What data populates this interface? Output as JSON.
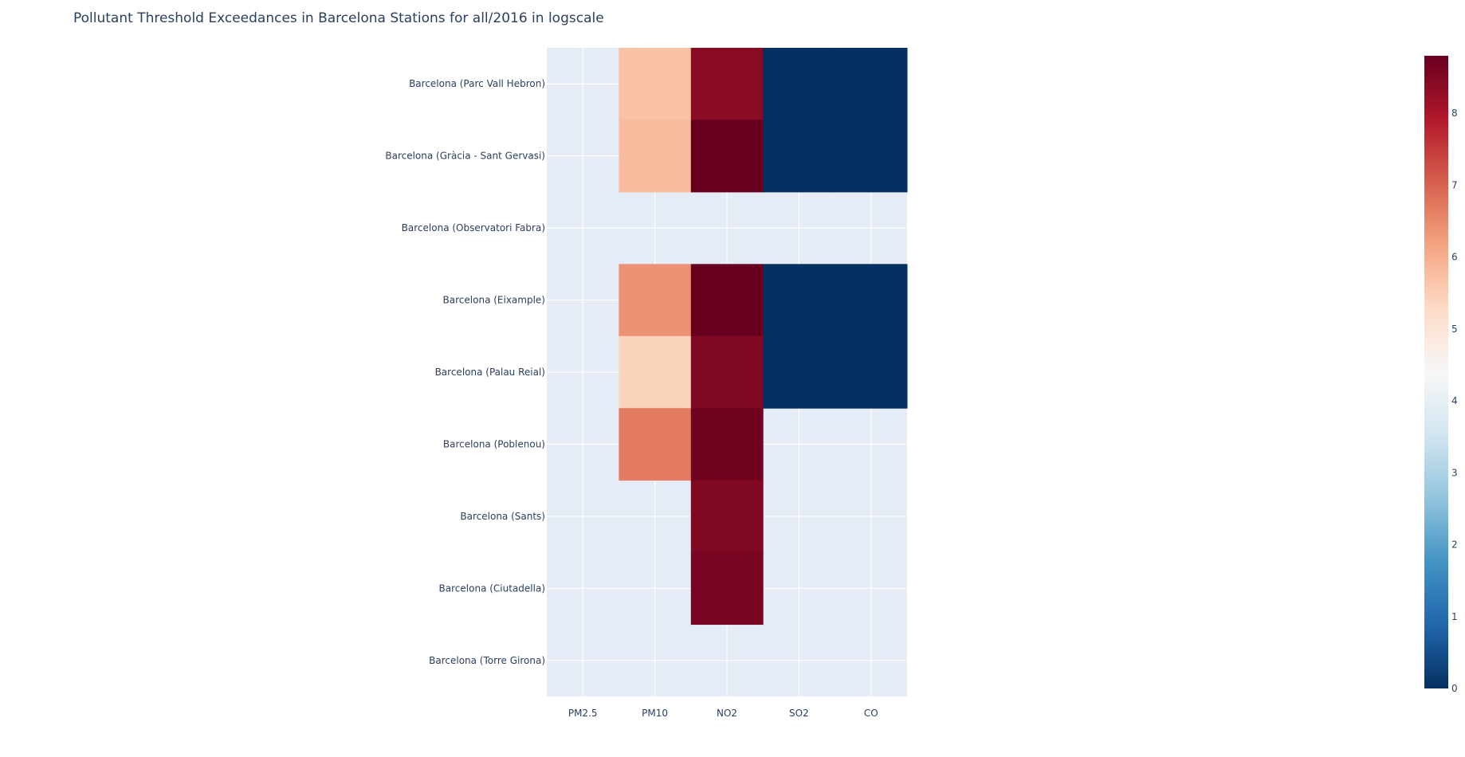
{
  "chart_data": {
    "type": "heatmap",
    "title": "Pollutant Threshold Exceedances in Barcelona Stations for all/2016 in logscale",
    "xlabel": "",
    "ylabel": "",
    "x_categories": [
      "PM2.5",
      "PM10",
      "NO2",
      "SO2",
      "CO"
    ],
    "y_categories": [
      "Barcelona (Parc Vall Hebron)",
      "Barcelona (Gràcia - Sant Gervasi)",
      "Barcelona (Observatori Fabra)",
      "Barcelona (Eixample)",
      "Barcelona (Palau Reial)",
      "Barcelona (Poblenou)",
      "Barcelona (Sants)",
      "Barcelona (Ciutadella)",
      "Barcelona (Torre Girona)"
    ],
    "z": [
      [
        null,
        5.7,
        8.4,
        0,
        0
      ],
      [
        null,
        5.8,
        8.9,
        0,
        0
      ],
      [
        null,
        null,
        null,
        null,
        null
      ],
      [
        null,
        6.4,
        8.9,
        0,
        0
      ],
      [
        null,
        5.4,
        8.5,
        0,
        0
      ],
      [
        null,
        6.7,
        8.7,
        null,
        null
      ],
      [
        null,
        null,
        8.5,
        null,
        null
      ],
      [
        null,
        null,
        8.6,
        null,
        null
      ],
      [
        null,
        null,
        null,
        null,
        null
      ]
    ],
    "colorscale": "RdBu_r",
    "colorbar": {
      "range": [
        0,
        8.8
      ],
      "ticks": [
        0,
        1,
        2,
        3,
        4,
        5,
        6,
        7,
        8
      ]
    },
    "plot_background": "#e5ecf6",
    "grid": true
  }
}
